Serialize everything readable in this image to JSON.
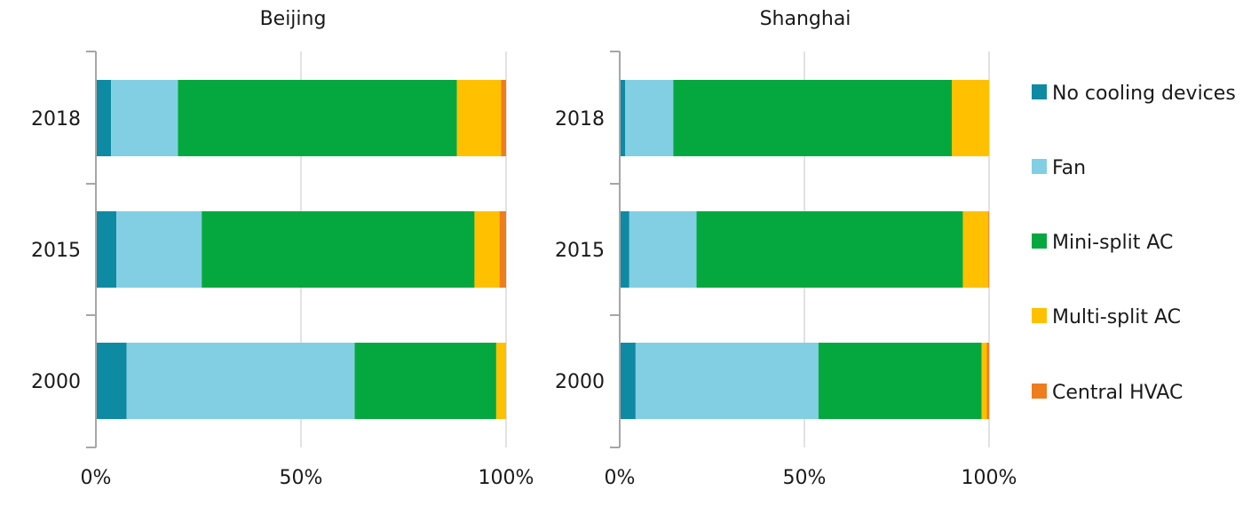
{
  "chart_data": {
    "type": "bar",
    "orientation": "horizontal",
    "stacking": "percent",
    "categories": [
      "2018",
      "2015",
      "2000"
    ],
    "xlim": [
      0,
      100
    ],
    "xticks": [
      "0%",
      "50%",
      "100%"
    ],
    "grid": true,
    "legend_position": "right",
    "series_colors": {
      "No cooling devices": "#0f8aa3",
      "Fan": "#82cfe3",
      "Mini-split AC": "#04a83f",
      "Multi-split AC": "#ffc000",
      "Central HVAC": "#ee7d1e"
    },
    "legend": [
      "No cooling devices",
      "Fan",
      "Mini-split AC",
      "Multi-split AC",
      "Central HVAC"
    ],
    "panels": [
      {
        "title": "Beijing",
        "series": [
          {
            "name": "No cooling devices",
            "values": [
              3.7,
              5.0,
              7.5
            ]
          },
          {
            "name": "Fan",
            "values": [
              16.3,
              20.8,
              55.6
            ]
          },
          {
            "name": "Mini-split AC",
            "values": [
              68.0,
              66.5,
              34.5
            ]
          },
          {
            "name": "Multi-split AC",
            "values": [
              10.8,
              6.1,
              2.4
            ]
          },
          {
            "name": "Central HVAC",
            "values": [
              1.2,
              1.6,
              0.0
            ]
          }
        ]
      },
      {
        "title": "Shanghai",
        "series": [
          {
            "name": "No cooling devices",
            "values": [
              1.5,
              2.6,
              4.3
            ]
          },
          {
            "name": "Fan",
            "values": [
              13.0,
              18.2,
              49.5
            ]
          },
          {
            "name": "Mini-split AC",
            "values": [
              75.4,
              72.1,
              44.2
            ]
          },
          {
            "name": "Multi-split AC",
            "values": [
              10.1,
              6.9,
              1.4
            ]
          },
          {
            "name": "Central HVAC",
            "values": [
              0.0,
              0.2,
              0.6
            ]
          }
        ]
      }
    ]
  }
}
